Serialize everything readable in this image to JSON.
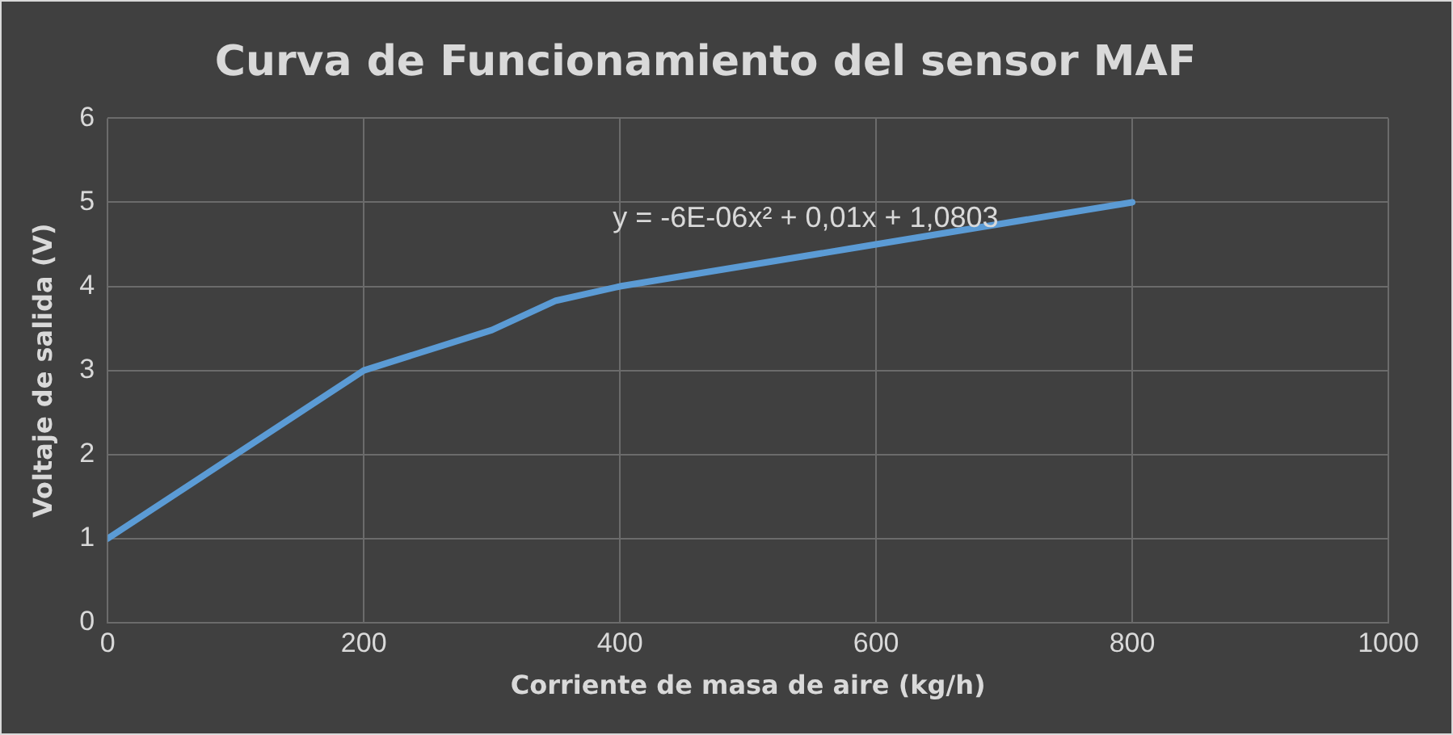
{
  "chart_data": {
    "type": "line",
    "title": "Curva de Funcionamiento del sensor MAF",
    "xlabel": "Corriente de masa de aire (kg/h)",
    "ylabel": "Voltaje de salida (V)",
    "x": [
      0,
      150,
      200,
      300,
      350,
      400,
      600,
      800
    ],
    "series": [
      {
        "color": "#5b9bd5",
        "values": [
          1,
          2.5,
          3,
          3.48,
          3.83,
          4,
          4.5,
          5
        ]
      }
    ],
    "xlim": [
      0,
      1000
    ],
    "xticks": [
      0,
      200,
      400,
      600,
      800,
      1000
    ],
    "ylim": [
      0,
      6
    ],
    "yticks": [
      0,
      1,
      2,
      3,
      4,
      5,
      6
    ],
    "grid": true,
    "marker": "none",
    "line_style": "solid",
    "annotations": [
      "y = -6E-06x² + 0,01x + 1,0803"
    ]
  }
}
